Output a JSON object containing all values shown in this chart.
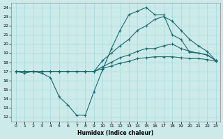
{
  "title": "",
  "xlabel": "Humidex (Indice chaleur)",
  "bg_color": "#cceaea",
  "grid_color": "#aadddd",
  "line_color": "#1a6b6b",
  "xlim": [
    -0.5,
    23.5
  ],
  "ylim": [
    11.5,
    24.5
  ],
  "yticks": [
    12,
    13,
    14,
    15,
    16,
    17,
    18,
    19,
    20,
    21,
    22,
    23,
    24
  ],
  "xticks": [
    0,
    1,
    2,
    3,
    4,
    5,
    6,
    7,
    8,
    9,
    10,
    11,
    12,
    13,
    14,
    15,
    16,
    17,
    18,
    19,
    20,
    21,
    22,
    23
  ],
  "line1_x": [
    0,
    1,
    2,
    3,
    4,
    5,
    6,
    7,
    8,
    9,
    10,
    11,
    12,
    13,
    14,
    15,
    16,
    17,
    18,
    19,
    20,
    21,
    22,
    23
  ],
  "line1_y": [
    17.0,
    16.8,
    17.0,
    16.8,
    16.3,
    14.2,
    13.3,
    12.2,
    12.2,
    14.8,
    17.2,
    19.5,
    21.5,
    23.2,
    23.6,
    24.0,
    23.2,
    23.2,
    21.0,
    20.5,
    19.1,
    19.0,
    18.8,
    18.2
  ],
  "line2_x": [
    0,
    1,
    2,
    3,
    4,
    5,
    6,
    7,
    8,
    9,
    10,
    11,
    12,
    13,
    14,
    15,
    16,
    17,
    18,
    19,
    20,
    21,
    22,
    23
  ],
  "line2_y": [
    17.0,
    17.0,
    17.0,
    17.0,
    17.0,
    17.0,
    17.0,
    17.0,
    17.0,
    17.0,
    17.5,
    18.0,
    18.5,
    18.8,
    19.2,
    19.5,
    19.5,
    19.8,
    20.0,
    19.5,
    19.2,
    19.0,
    18.8,
    18.2
  ],
  "line3_x": [
    0,
    1,
    2,
    3,
    4,
    5,
    6,
    7,
    8,
    9,
    10,
    11,
    12,
    13,
    14,
    15,
    16,
    17,
    18,
    19,
    20,
    21,
    22,
    23
  ],
  "line3_y": [
    17.0,
    17.0,
    17.0,
    17.0,
    17.0,
    17.0,
    17.0,
    17.0,
    17.0,
    17.0,
    17.3,
    17.6,
    17.9,
    18.1,
    18.4,
    18.5,
    18.6,
    18.6,
    18.6,
    18.5,
    18.4,
    18.4,
    18.3,
    18.1
  ],
  "line4_x": [
    0,
    1,
    2,
    3,
    4,
    5,
    6,
    7,
    8,
    9,
    10,
    11,
    12,
    13,
    14,
    15,
    16,
    17,
    18,
    19,
    20,
    21,
    22,
    23
  ],
  "line4_y": [
    17.0,
    17.0,
    17.0,
    17.0,
    17.0,
    17.0,
    17.0,
    17.0,
    17.0,
    17.0,
    18.2,
    19.0,
    19.8,
    20.5,
    21.5,
    22.0,
    22.7,
    23.0,
    22.5,
    21.5,
    20.5,
    19.8,
    19.2,
    18.2
  ]
}
